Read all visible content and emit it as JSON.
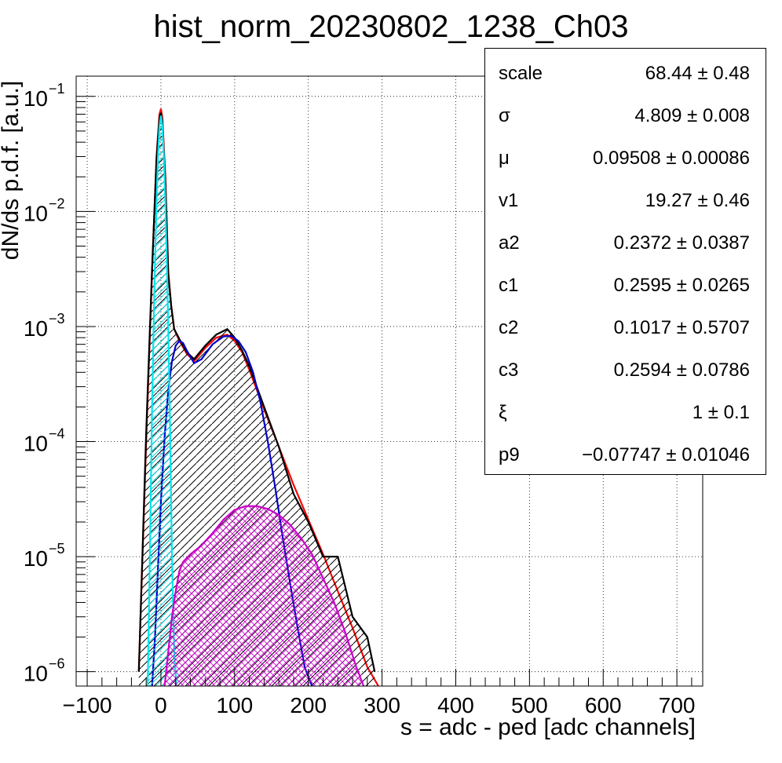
{
  "chart_data": {
    "type": "area",
    "title": "hist_norm_20230802_1238_Ch03",
    "xlabel": "s = adc - ped [adc channels]",
    "ylabel": "dN/ds p.d.f. [a.u.]",
    "xlim": [
      -115,
      735
    ],
    "ylim": [
      7.5e-07,
      0.15
    ],
    "y_scale": "log",
    "grid": true,
    "x_ticks": [
      "−100",
      "0",
      "100",
      "200",
      "300",
      "400",
      "500",
      "600",
      "700"
    ],
    "x_tick_values": [
      -100,
      0,
      100,
      200,
      300,
      400,
      500,
      600,
      700
    ],
    "y_ticks": [
      {
        "base": "10",
        "exp": "−1",
        "value": 0.1
      },
      {
        "base": "10",
        "exp": "−2",
        "value": 0.01
      },
      {
        "base": "10",
        "exp": "−3",
        "value": 0.001
      },
      {
        "base": "10",
        "exp": "−4",
        "value": 0.0001
      },
      {
        "base": "10",
        "exp": "−5",
        "value": 1e-05
      },
      {
        "base": "10",
        "exp": "−6",
        "value": 1e-06
      }
    ],
    "series": [
      {
        "color": "#ff0000",
        "fill": "none",
        "x": [
          -30,
          -20,
          -12,
          -6,
          -2,
          0,
          2,
          6,
          10,
          14,
          18,
          25,
          35,
          45,
          60,
          75,
          90,
          100,
          110,
          120,
          140,
          160,
          180,
          200,
          220,
          240,
          260,
          280,
          295
        ],
        "y": [
          1e-06,
          0.0001,
          0.003,
          0.03,
          0.07,
          0.078,
          0.065,
          0.02,
          0.003,
          0.0015,
          0.00095,
          0.00075,
          0.00058,
          0.0005,
          0.00065,
          0.0008,
          0.00085,
          0.00075,
          0.0006,
          0.00042,
          0.00019,
          9e-05,
          4.2e-05,
          2.1e-05,
          1.05e-05,
          5e-06,
          2.4e-06,
          1.1e-06,
          7e-07
        ]
      },
      {
        "color": "#000000",
        "fill": "hatch-black",
        "x": [
          -30,
          -20,
          -12,
          -6,
          -2,
          0,
          2,
          6,
          10,
          14,
          18,
          25,
          35,
          45,
          60,
          75,
          90,
          100,
          110,
          120,
          140,
          160,
          180,
          200,
          220,
          240,
          260,
          280,
          290
        ],
        "y": [
          1e-06,
          0.00012,
          0.0032,
          0.028,
          0.065,
          0.072,
          0.06,
          0.018,
          0.0028,
          0.0015,
          0.00095,
          0.00078,
          0.0006,
          0.00052,
          0.00068,
          0.00085,
          0.00095,
          0.0008,
          0.00062,
          0.00045,
          0.0002,
          9e-05,
          3.5e-05,
          2e-05,
          1e-05,
          1e-05,
          3e-06,
          2e-06,
          1e-06
        ]
      },
      {
        "color": "#0000cc",
        "fill": "none",
        "x": [
          -12,
          -8,
          -4,
          0,
          5,
          10,
          15,
          20,
          25,
          30,
          35,
          45,
          55,
          70,
          85,
          95,
          105,
          115,
          125,
          135,
          145,
          155,
          165,
          175,
          185,
          195,
          205
        ],
        "y": [
          7.5e-07,
          2e-06,
          8e-06,
          3e-05,
          0.00011,
          0.00028,
          0.0005,
          0.00068,
          0.00075,
          0.00072,
          0.00062,
          0.00048,
          0.00052,
          0.0007,
          0.00082,
          0.00083,
          0.00075,
          0.0006,
          0.0004,
          0.00022,
          0.0001,
          4e-05,
          1.5e-05,
          6e-06,
          2.5e-06,
          1.1e-06,
          7.5e-07
        ]
      },
      {
        "color": "#00e5ee",
        "fill": "hatch-cyan",
        "x": [
          -18,
          -15,
          -12,
          -9,
          -6,
          -4,
          -2,
          0,
          2,
          4,
          6,
          9,
          12,
          15,
          18,
          21
        ],
        "y": [
          7.5e-07,
          1e-05,
          0.0002,
          0.002,
          0.012,
          0.03,
          0.055,
          0.068,
          0.055,
          0.03,
          0.012,
          0.002,
          0.0002,
          1e-05,
          1.5e-06,
          7.5e-07
        ]
      },
      {
        "color": "#cc00cc",
        "fill": "hatch-magenta",
        "x": [
          5,
          10,
          15,
          20,
          25,
          30,
          40,
          55,
          70,
          85,
          100,
          115,
          130,
          145,
          160,
          175,
          190,
          205,
          220,
          235,
          250,
          265,
          275
        ],
        "y": [
          7.5e-07,
          1.5e-06,
          3e-06,
          5e-06,
          7.5e-06,
          9e-06,
          1.05e-05,
          1.25e-05,
          1.6e-05,
          2.1e-05,
          2.55e-05,
          2.75e-05,
          2.75e-05,
          2.6e-05,
          2.3e-05,
          1.9e-05,
          1.45e-05,
          1.05e-05,
          6.5e-06,
          4e-06,
          2.2e-06,
          1.1e-06,
          7.5e-07
        ]
      }
    ],
    "stats": [
      {
        "name": "scale",
        "value": "68.44 ± 0.48"
      },
      {
        "name": "σ",
        "value": "4.809 ± 0.008"
      },
      {
        "name": "μ",
        "value": "0.09508 ± 0.00086"
      },
      {
        "name": "v1",
        "value": "19.27 ± 0.46"
      },
      {
        "name": "a2",
        "value": "0.2372 ± 0.0387"
      },
      {
        "name": "c1",
        "value": "0.2595 ± 0.0265"
      },
      {
        "name": "c2",
        "value": "0.1017 ± 0.5707"
      },
      {
        "name": "c3",
        "value": "0.2594 ± 0.0786"
      },
      {
        "name": "ξ",
        "value": "1 ± 0.1"
      },
      {
        "name": "p9",
        "value": "−0.07747 ± 0.01046"
      }
    ]
  }
}
